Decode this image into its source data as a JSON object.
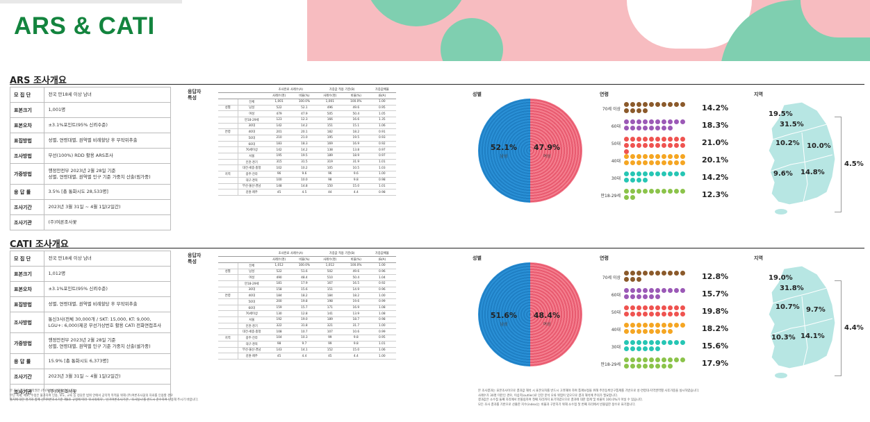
{
  "page": {
    "title": "ARS & CATI"
  },
  "colors": {
    "brand_green": "#13843e",
    "deco_pink": "#f7bcc0",
    "deco_green": "#7fcfb0",
    "male_blue": "#1f7fc4",
    "female_pink": "#e85a6f",
    "map_teal": "#b7e6e3"
  },
  "ars": {
    "title": "ARS 조사개요",
    "overview": [
      {
        "key": "모 집 단",
        "value": "전국 만18세 이상 남녀"
      },
      {
        "key": "표본크기",
        "value": "1,001명"
      },
      {
        "key": "표본오차",
        "value": "±3.1%포인트(95% 신뢰수준)"
      },
      {
        "key": "표집방법",
        "value": "성별, 연령대별, 권역별 비례할당 후 무작위추출"
      },
      {
        "key": "조사방법",
        "value": "무선(100%) RDD 활용 ARS조사"
      },
      {
        "key": "가중방법",
        "value": "행정안전부 2023년 2월 28일 기준\n성별, 연령대별, 권역별 인구 기준 가중치 산출(림가중)"
      },
      {
        "key": "응 답 률",
        "value": "3.5% [총 통화시도 28,533명]"
      },
      {
        "key": "조사기간",
        "value": "2023년 3월 31일 ~ 4월 1일(2일간)"
      },
      {
        "key": "조사기관",
        "value": "(주)여론조사꽃"
      }
    ],
    "table_title": "응답자\n특성",
    "table_header": [
      "",
      "",
      "사례수(명)",
      "비율(%)",
      "사례수(명)",
      "비율(%)",
      "(B/A)"
    ],
    "table_group_header": [
      "조사완료 사례수(A)",
      "가중값 적용 기준(B)",
      "가중값배율"
    ],
    "table_rows": [
      [
        "",
        "전체",
        "1,001",
        "100.0%",
        "1,001",
        "100.0%",
        "1.00"
      ],
      [
        "성별",
        "남성",
        "522",
        "52.1",
        "496",
        "49.6",
        "0.95"
      ],
      [
        "",
        "여성",
        "479",
        "47.9",
        "505",
        "50.4",
        "1.05"
      ],
      [
        "",
        "만18-29세",
        "123",
        "12.3",
        "166",
        "16.6",
        "1.35"
      ],
      [
        "",
        "30대",
        "142",
        "14.2",
        "151",
        "15.1",
        "1.06"
      ],
      [
        "연령",
        "40대",
        "201",
        "20.1",
        "182",
        "18.2",
        "0.91"
      ],
      [
        "",
        "50대",
        "210",
        "21.0",
        "195",
        "19.5",
        "0.93"
      ],
      [
        "",
        "60대",
        "183",
        "18.3",
        "169",
        "16.9",
        "0.92"
      ],
      [
        "",
        "70세이상",
        "142",
        "14.2",
        "138",
        "13.8",
        "0.97"
      ],
      [
        "",
        "서울",
        "195",
        "19.5",
        "189",
        "18.9",
        "0.97"
      ],
      [
        "",
        "인천·경기",
        "315",
        "31.5",
        "319",
        "31.9",
        "1.01"
      ],
      [
        "",
        "대전·세종·충청",
        "102",
        "10.2",
        "105",
        "10.5",
        "1.03"
      ],
      [
        "지역",
        "광주·전라",
        "96",
        "9.6",
        "96",
        "9.6",
        "1.00"
      ],
      [
        "",
        "대구·경북",
        "100",
        "10.0",
        "98",
        "9.8",
        "0.98"
      ],
      [
        "",
        "부산·울산·경남",
        "148",
        "14.8",
        "150",
        "15.0",
        "1.01"
      ],
      [
        "",
        "강원·제주",
        "45",
        "4.5",
        "44",
        "4.4",
        "0.98"
      ]
    ],
    "gender_title": "성별",
    "male": {
      "value": "52.1%",
      "label": "남성"
    },
    "female": {
      "value": "47.9%",
      "label": "여성"
    },
    "age_title": "연령",
    "ages": [
      {
        "label": "70세 이상",
        "value": "14.2%",
        "n": 14
      },
      {
        "label": "60대",
        "value": "18.3%",
        "n": 18
      },
      {
        "label": "50대",
        "value": "21.0%",
        "n": 21
      },
      {
        "label": "40대",
        "value": "20.1%",
        "n": 20
      },
      {
        "label": "30대",
        "value": "14.2%",
        "n": 14
      },
      {
        "label": "만18-29세",
        "value": "12.3%",
        "n": 12
      }
    ],
    "region_title": "지역",
    "regions": {
      "seoul": "19.5%",
      "gyeonggi": "31.5%",
      "chungcheong": "10.2%",
      "gyeongbuk": "10.0%",
      "jeolla": "9.6%",
      "gyeongnam": "14.8%",
      "gangwon_jeju": "4.5%"
    }
  },
  "cati": {
    "title": "CATI 조사개요",
    "overview": [
      {
        "key": "모 집 단",
        "value": "전국 만18세 이상 남녀"
      },
      {
        "key": "표본크기",
        "value": "1,012명"
      },
      {
        "key": "표본오차",
        "value": "±3.1%포인트(95% 신뢰수준)"
      },
      {
        "key": "표집방법",
        "value": "성별, 연령대별, 권역별 비례할당 후 무작위추출"
      },
      {
        "key": "조사방법",
        "value": "통신3사(전체 30,000개 / SKT: 15,000, KT: 9,000, LGU+: 6,000)제공 무선가상번호 활용 CATI 전화면접조사"
      },
      {
        "key": "가중방법",
        "value": "행정안전부 2023년 2월 28일 기준\n성별, 연령대별, 권역별 인구 기준 가중치 산출(셀가중)"
      },
      {
        "key": "응 답 률",
        "value": "15.9% [총 통화시도 6,373명]"
      },
      {
        "key": "조사기간",
        "value": "2023년 3월 31일 ~ 4월 1일(2일간)"
      },
      {
        "key": "조사기관",
        "value": "(주)여론조사꽃"
      }
    ],
    "table_title": "응답자\n특성",
    "table_header": [
      "",
      "",
      "사례수(명)",
      "비율(%)",
      "사례수(명)",
      "비율(%)",
      "(B/A)"
    ],
    "table_group_header": [
      "조사완료 사례수(A)",
      "가중값 적용 기준(B)",
      "가중값배율"
    ],
    "table_rows": [
      [
        "",
        "전체",
        "1,012",
        "100.0%",
        "1,012",
        "100.0%",
        "1.00"
      ],
      [
        "성별",
        "남성",
        "522",
        "51.6",
        "502",
        "49.6",
        "0.96"
      ],
      [
        "",
        "여성",
        "490",
        "48.4",
        "510",
        "50.4",
        "1.04"
      ],
      [
        "",
        "만18-29세",
        "181",
        "17.9",
        "167",
        "16.5",
        "0.92"
      ],
      [
        "",
        "30대",
        "158",
        "15.6",
        "151",
        "14.9",
        "0.96"
      ],
      [
        "연령",
        "40대",
        "184",
        "18.2",
        "184",
        "18.2",
        "1.00"
      ],
      [
        "",
        "50대",
        "200",
        "19.8",
        "198",
        "19.6",
        "0.99"
      ],
      [
        "",
        "60대",
        "159",
        "15.7",
        "171",
        "16.9",
        "1.08"
      ],
      [
        "",
        "70세이상",
        "130",
        "12.8",
        "141",
        "13.9",
        "1.08"
      ],
      [
        "",
        "서울",
        "192",
        "19.0",
        "189",
        "18.7",
        "0.98"
      ],
      [
        "",
        "인천·경기",
        "322",
        "31.8",
        "321",
        "31.7",
        "1.00"
      ],
      [
        "",
        "대전·세종·충청",
        "108",
        "10.7",
        "107",
        "10.6",
        "0.99"
      ],
      [
        "지역",
        "광주·전라",
        "104",
        "10.3",
        "99",
        "9.8",
        "0.95"
      ],
      [
        "",
        "대구·경북",
        "98",
        "9.7",
        "99",
        "9.8",
        "1.01"
      ],
      [
        "",
        "부산·울산·경남",
        "143",
        "14.1",
        "152",
        "15.0",
        "1.06"
      ],
      [
        "",
        "강원·제주",
        "45",
        "4.4",
        "45",
        "4.4",
        "1.00"
      ]
    ],
    "gender_title": "성별",
    "male": {
      "value": "51.6%",
      "label": "남성"
    },
    "female": {
      "value": "48.4%",
      "label": "여성"
    },
    "age_title": "연령",
    "ages": [
      {
        "label": "70세 이상",
        "value": "12.8%",
        "n": 13
      },
      {
        "label": "60대",
        "value": "15.7%",
        "n": 16
      },
      {
        "label": "50대",
        "value": "19.8%",
        "n": 20
      },
      {
        "label": "40대",
        "value": "18.2%",
        "n": 18
      },
      {
        "label": "30대",
        "value": "15.6%",
        "n": 16
      },
      {
        "label": "만18-29세",
        "value": "17.9%",
        "n": 18
      }
    ],
    "region_title": "지역",
    "regions": {
      "seoul": "19.0%",
      "gyeonggi": "31.8%",
      "chungcheong": "10.7%",
      "gyeongbuk": "9.7%",
      "jeolla": "10.3%",
      "gyeongnam": "14.1%",
      "gangwon_jeju": "4.4%"
    }
  },
  "notes_left": [
    "본 조사 결과의 저작권은 (주)여론조사꽃에 있습니다.",
    "무단 복제, 배포, 수정은 불가하며 인용, 보도, 교육 등 정당한 범위 안에서 공익적 목적을 위해 (주)여론조사꽃의 자료를 인용할 경우",
    "출처에 대한 명기와 함께 선거여론조사기준 제8조 규정에 따라 '조사의뢰자', '선거여론조사기관', '조사일시'를 반드시 준수하여 인용해 주시기 바랍니다."
  ],
  "notes_right": [
    "본 조사결과는 표본조사이므로 결과값 해석 시 표본오차를 반드시 고려해야 하며 통계보정을 위해 주민등록인구통계를 기반으로 성·연령대·지역권역별 사후가중을 실시하였습니다.",
    "사례수가 30명 미만인 경우, 이상치(outlier)로 인한 분석 오류 위험이 있으므로 결과 해석에 주의가 필요합니다.",
    "결과값은 소수점 둘째 자리에서 반올림하여 첫째 자리까지 표기하였으므로 결과에 대한 합계 및 비율이 100.0%가 아닐 수 있습니다.",
    "모든 조사 결과를 기반으로 산출한 지수(index)는 비율과 구분하기 위해 소수점 첫 번째 자리에서 반올림한 정수로 표기합니다."
  ]
}
